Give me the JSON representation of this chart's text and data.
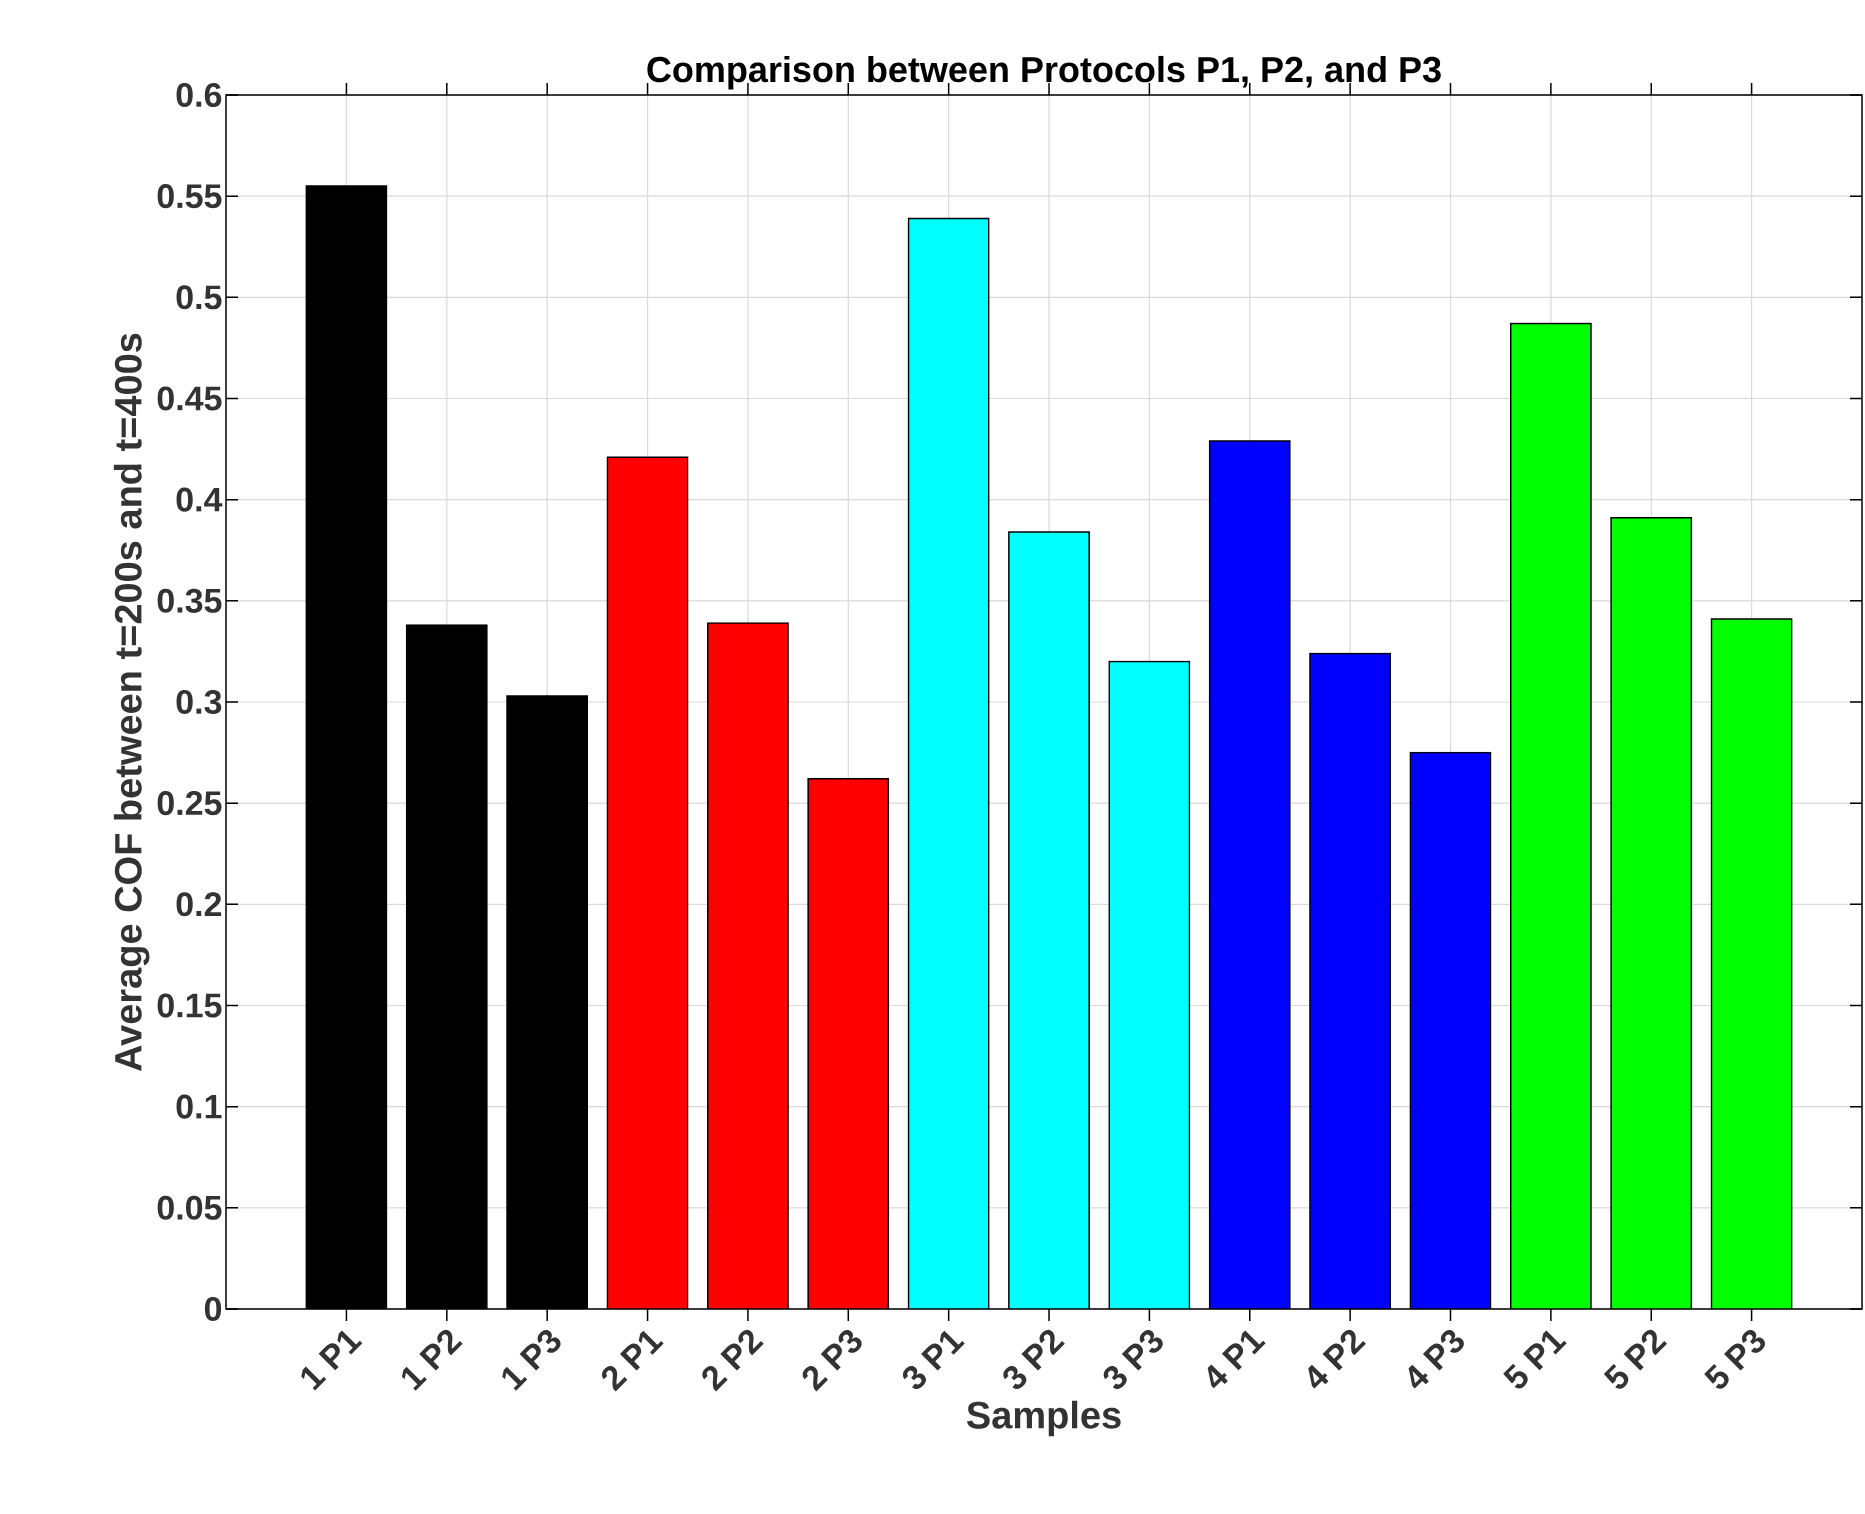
{
  "chart_data": {
    "type": "bar",
    "title": "Comparison between Protocols P1, P2, and P3",
    "xlabel": "Samples",
    "ylabel": "Average COF between t=200s and t=400s",
    "categories": [
      "1 P1",
      "1 P2",
      "1 P3",
      "2 P1",
      "2 P2",
      "2 P3",
      "3 P1",
      "3 P2",
      "3 P3",
      "4 P1",
      "4 P2",
      "4 P3",
      "5 P1",
      "5 P2",
      "5 P3"
    ],
    "values": [
      0.555,
      0.338,
      0.303,
      0.421,
      0.339,
      0.262,
      0.539,
      0.384,
      0.32,
      0.429,
      0.324,
      0.275,
      0.487,
      0.391,
      0.341
    ],
    "colors": [
      "#000000",
      "#000000",
      "#000000",
      "#ff0000",
      "#ff0000",
      "#ff0000",
      "#00ffff",
      "#00ffff",
      "#00ffff",
      "#0000ff",
      "#0000ff",
      "#0000ff",
      "#00ff00",
      "#00ff00",
      "#00ff00"
    ],
    "ylim": [
      0,
      0.6
    ],
    "yticks": [
      0,
      0.05,
      0.1,
      0.15,
      0.2,
      0.25,
      0.3,
      0.35,
      0.4,
      0.45,
      0.5,
      0.55,
      0.6
    ],
    "grid": true
  }
}
